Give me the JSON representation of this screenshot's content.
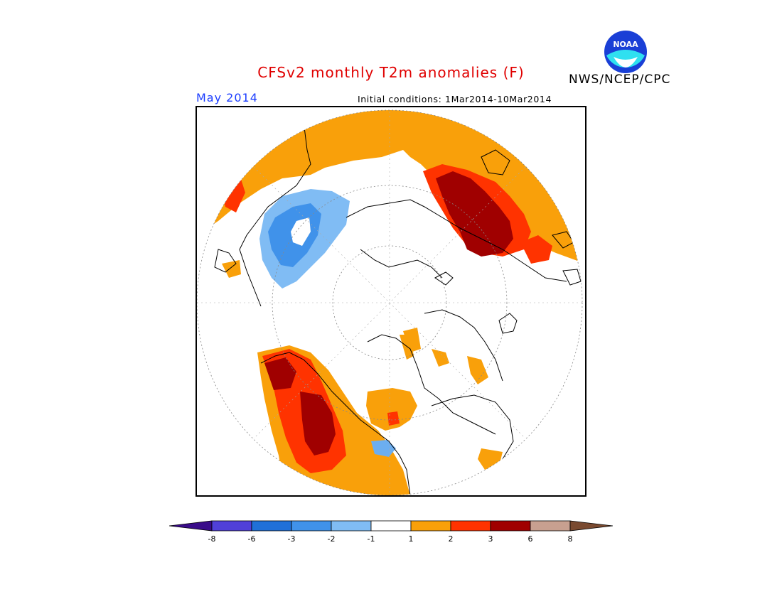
{
  "header": {
    "title": "CFSv2 monthly T2m anomalies (F)",
    "agency": "NWS/NCEP/CPC",
    "logo_text": "NOAA",
    "forecast_month": "May 2014",
    "initial_conditions": "Initial conditions: 1Mar2014-10Mar2014"
  },
  "map": {
    "projection": "north-polar-stereographic",
    "regions": [
      {
        "name": "europe-western-russia",
        "category": "6",
        "color": "#a00000"
      },
      {
        "name": "western-north-america",
        "category": "6",
        "color": "#a00000"
      },
      {
        "name": "north-pacific-east-siberia",
        "category": "-2",
        "color": "#6caef0"
      },
      {
        "name": "great-lakes",
        "category": "-2",
        "color": "#6caef0"
      }
    ]
  },
  "colorbar": {
    "labels": [
      "-8",
      "-6",
      "-3",
      "-2",
      "-1",
      "1",
      "2",
      "3",
      "6",
      "8"
    ],
    "colors": [
      "#4010b0",
      "#5040d8",
      "#2070d8",
      "#4092ea",
      "#80bcf4",
      "#ffffff",
      "#f9a00a",
      "#ff3300",
      "#a00000",
      "#c8a090",
      "#7a4a30"
    ]
  }
}
